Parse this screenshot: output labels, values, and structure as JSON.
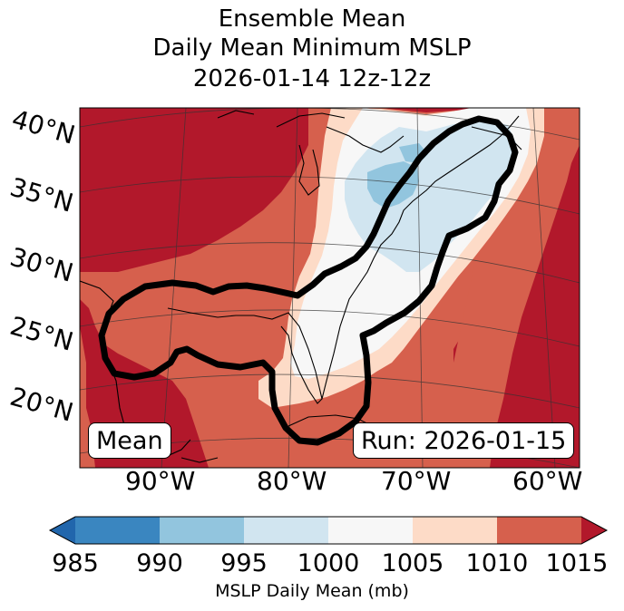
{
  "title": {
    "line1": "Ensemble Mean",
    "line2": "Daily Mean Minimum MSLP",
    "line3": "2026-01-14 12z-12z"
  },
  "map": {
    "lat_labels": [
      "40°N",
      "35°N",
      "30°N",
      "25°N",
      "20°N"
    ],
    "lon_labels": [
      "90°W",
      "80°W",
      "70°W",
      "60°W"
    ],
    "mean_box": "Mean",
    "run_box": "Run: 2026-01-15",
    "contour_color": "#000000",
    "region": "Gulf of Mexico, US East Coast and western Atlantic"
  },
  "colorbar": {
    "ticks": [
      "985",
      "990",
      "995",
      "1000",
      "1005",
      "1010",
      "1015"
    ],
    "label": "MSLP Daily Mean (mb)",
    "colors": [
      "#2166ac",
      "#3a86c0",
      "#92c5de",
      "#d1e5f0",
      "#f7f7f7",
      "#fddbc7",
      "#d6604d",
      "#b2182b"
    ],
    "extend": "both"
  }
}
